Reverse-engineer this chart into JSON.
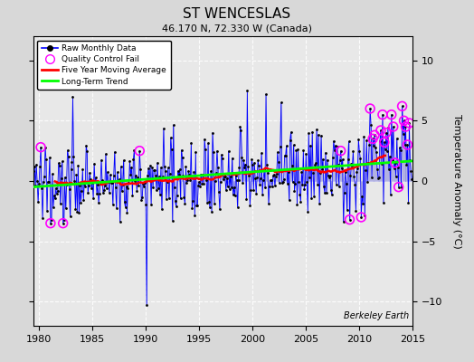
{
  "title": "ST WENCESLAS",
  "subtitle": "46.170 N, 72.330 W (Canada)",
  "ylabel": "Temperature Anomaly (°C)",
  "watermark": "Berkeley Earth",
  "xlim": [
    1979.5,
    2014.5
  ],
  "ylim": [
    -12,
    12
  ],
  "yticks": [
    -10,
    -5,
    0,
    5,
    10
  ],
  "xticks": [
    1980,
    1985,
    1990,
    1995,
    2000,
    2005,
    2010,
    2015
  ],
  "bg_color": "#d8d8d8",
  "plot_bg_color": "#e8e8e8",
  "seed": 137
}
